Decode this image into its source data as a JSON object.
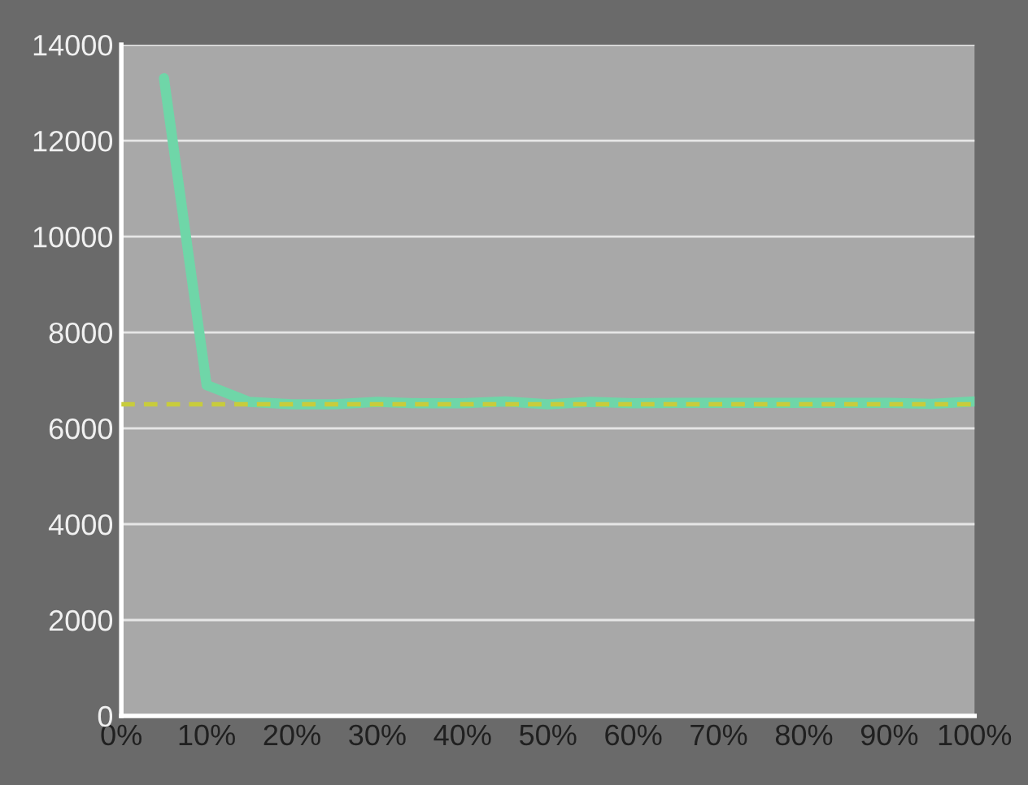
{
  "chart_data": {
    "type": "line",
    "x": [
      5,
      10,
      15,
      20,
      25,
      30,
      35,
      40,
      45,
      50,
      55,
      60,
      65,
      70,
      75,
      80,
      85,
      90,
      95,
      100
    ],
    "series": [
      {
        "color": "#6fd6a8",
        "values": [
          13300,
          6900,
          6550,
          6500,
          6500,
          6550,
          6520,
          6520,
          6560,
          6500,
          6550,
          6520,
          6530,
          6530,
          6530,
          6530,
          6530,
          6530,
          6510,
          6560
        ]
      }
    ],
    "ref_lines": [
      {
        "axis": "y",
        "value": 6500,
        "color": "#c8cc3c",
        "line_style": "dashed"
      }
    ],
    "xlim": [
      0,
      100
    ],
    "xticks": [
      {
        "value": 0,
        "label": "0%"
      },
      {
        "value": 10,
        "label": "10%"
      },
      {
        "value": 20,
        "label": "20%"
      },
      {
        "value": 30,
        "label": "30%"
      },
      {
        "value": 40,
        "label": "40%"
      },
      {
        "value": 50,
        "label": "50%"
      },
      {
        "value": 60,
        "label": "60%"
      },
      {
        "value": 70,
        "label": "70%"
      },
      {
        "value": 80,
        "label": "80%"
      },
      {
        "value": 90,
        "label": "90%"
      },
      {
        "value": 100,
        "label": "100%"
      }
    ],
    "ylim": [
      0,
      14000
    ],
    "yticks": [
      0,
      2000,
      4000,
      6000,
      8000,
      10000,
      12000,
      14000
    ],
    "grid": "y",
    "marker": "none",
    "line_style": "solid"
  }
}
